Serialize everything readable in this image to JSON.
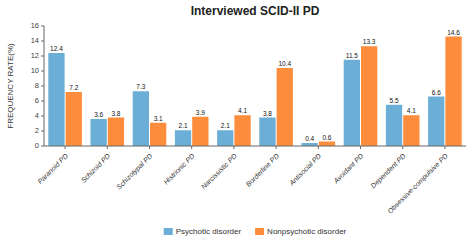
{
  "chart_data": {
    "type": "bar",
    "title": "Interviewed SCID-II PD",
    "categories": [
      "Paranoid PD",
      "Schizoid PD",
      "Schizotypal PD",
      "Histrionic PD",
      "Narcissistic PD",
      "Borderline PD",
      "Antisocial PD",
      "Avoidant PD",
      "Dependent PD",
      "Obsessive-compulsive PD"
    ],
    "series": [
      {
        "name": "Psychotic disorder",
        "color": "#6baed6",
        "values": [
          12.4,
          3.6,
          7.3,
          2.1,
          2.1,
          3.8,
          0.4,
          11.5,
          5.5,
          6.6
        ]
      },
      {
        "name": "Nonpsychotic disorder",
        "color": "#fd8d3c",
        "values": [
          7.2,
          3.8,
          3.1,
          3.9,
          4.1,
          10.4,
          0.6,
          13.3,
          4.1,
          14.6
        ]
      }
    ],
    "ylabel": "FREQUENCY RATE(%)",
    "ylim": [
      0,
      16
    ],
    "yticks": [
      0,
      2,
      4,
      6,
      8,
      10,
      12,
      14,
      16
    ],
    "data_labels": true,
    "grid": false,
    "legend": "bottom"
  }
}
